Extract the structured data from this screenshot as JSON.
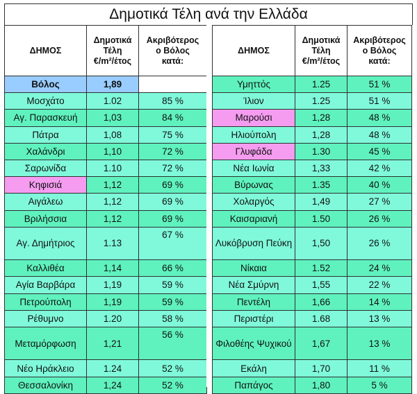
{
  "title": "Δημοτικά Τέλη ανά την Ελλάδα",
  "colors": {
    "green": "#5ff2bf",
    "green_alt": "#7ff9da",
    "pink": "#f59cf0",
    "blue": "#99ccff",
    "border": "#2f2f2f"
  },
  "headers": {
    "city": "ΔΗΜΟΣ",
    "fee": [
      "Δημοτικά",
      "Τέλη",
      "€/m²/έτος"
    ],
    "diff": [
      "Ακριβότερος",
      "ο Βόλος",
      "κατά:"
    ]
  },
  "left_rows": [
    {
      "city": "Βόλος",
      "fee": "1,89",
      "diff": "",
      "hl": "volos"
    },
    {
      "city": "Μοσχάτο",
      "fee": "1.02",
      "diff": "85 %",
      "hl": "g"
    },
    {
      "city": "Αγ. Παρασκευή",
      "fee": "1,03",
      "diff": "84 %",
      "hl": "g"
    },
    {
      "city": "Πάτρα",
      "fee": "1,08",
      "diff": "75 %",
      "hl": "g"
    },
    {
      "city": "Χαλάνδρι",
      "fee": "1,10",
      "diff": "72 %",
      "hl": "g"
    },
    {
      "city": "Σαρωνίδα",
      "fee": "1.10",
      "diff": "72 %",
      "hl": "g"
    },
    {
      "city": "Κηφισιά",
      "fee": "1,12",
      "diff": "69 %",
      "hl": "p"
    },
    {
      "city": "Αιγάλεω",
      "fee": "1,12",
      "diff": "69 %",
      "hl": "g"
    },
    {
      "city": "Βριλήσσια",
      "fee": "1,12",
      "diff": "69 %",
      "hl": "g"
    },
    {
      "city": "Αγ. Δημήτριος",
      "fee": "1.13",
      "diff": "67 %",
      "hl": "g",
      "tall": true
    },
    {
      "city": "Καλλιθέα",
      "fee": "1,14",
      "diff": "66 %",
      "hl": "g"
    },
    {
      "city": "Αγία Βαρβάρα",
      "fee": "1,19",
      "diff": "59 %",
      "hl": "g"
    },
    {
      "city": "Πετρούπολη",
      "fee": "1,19",
      "diff": "59 %",
      "hl": "g"
    },
    {
      "city": "Ρέθυμνο",
      "fee": "1.20",
      "diff": "58 %",
      "hl": "g"
    },
    {
      "city": "Μεταμόρφωση",
      "fee": "1,21",
      "diff": "56 %",
      "hl": "g",
      "tall": true
    },
    {
      "city": "Νέο Ηράκλειο",
      "fee": "1.24",
      "diff": "52 %",
      "hl": "g"
    },
    {
      "city": "Θεσσαλονίκη",
      "fee": "1,24",
      "diff": "52 %",
      "hl": "g"
    }
  ],
  "right_rows": [
    {
      "city": "Υμηττός",
      "fee": "1.25",
      "diff": "51 %",
      "hl": "g"
    },
    {
      "city": "Ίλιον",
      "fee": "1.25",
      "diff": "51 %",
      "hl": "g"
    },
    {
      "city": "Μαρούσι",
      "fee": "1,28",
      "diff": "48 %",
      "hl": "p"
    },
    {
      "city": "Ηλιούπολη",
      "fee": "1,28",
      "diff": "48 %",
      "hl": "g"
    },
    {
      "city": "Γλυφάδα",
      "fee": "1.30",
      "diff": "45 %",
      "hl": "p"
    },
    {
      "city": "Νέα Ιωνία",
      "fee": "1,33",
      "diff": "42 %",
      "hl": "g"
    },
    {
      "city": "Βύρωνας",
      "fee": "1.35",
      "diff": "40 %",
      "hl": "g"
    },
    {
      "city": "Χολαργός",
      "fee": "1,49",
      "diff": "27 %",
      "hl": "g"
    },
    {
      "city": "Καισαριανή",
      "fee": "1.50",
      "diff": "26 %",
      "hl": "g"
    },
    {
      "city": "Λυκόβρυση Πεύκη",
      "fee": "1,50",
      "diff": "26 %",
      "hl": "g",
      "tall": true
    },
    {
      "city": "Νίκαια",
      "fee": "1.52",
      "diff": "24 %",
      "hl": "g"
    },
    {
      "city": "Νέα Σμύρνη",
      "fee": "1,55",
      "diff": "22 %",
      "hl": "g"
    },
    {
      "city": "Πεντέλη",
      "fee": "1,66",
      "diff": "14 %",
      "hl": "g"
    },
    {
      "city": "Περιστέρι",
      "fee": "1.68",
      "diff": "13 %",
      "hl": "g"
    },
    {
      "city": "Φιλοθέης Ψυχικού",
      "fee": "1,67",
      "diff": "13 %",
      "hl": "g",
      "tall": true
    },
    {
      "city": "Εκάλη",
      "fee": "1,70",
      "diff": "11 %",
      "hl": "g"
    },
    {
      "city": "Παπάγος",
      "fee": "1,80",
      "diff": "5 %",
      "hl": "g"
    }
  ]
}
